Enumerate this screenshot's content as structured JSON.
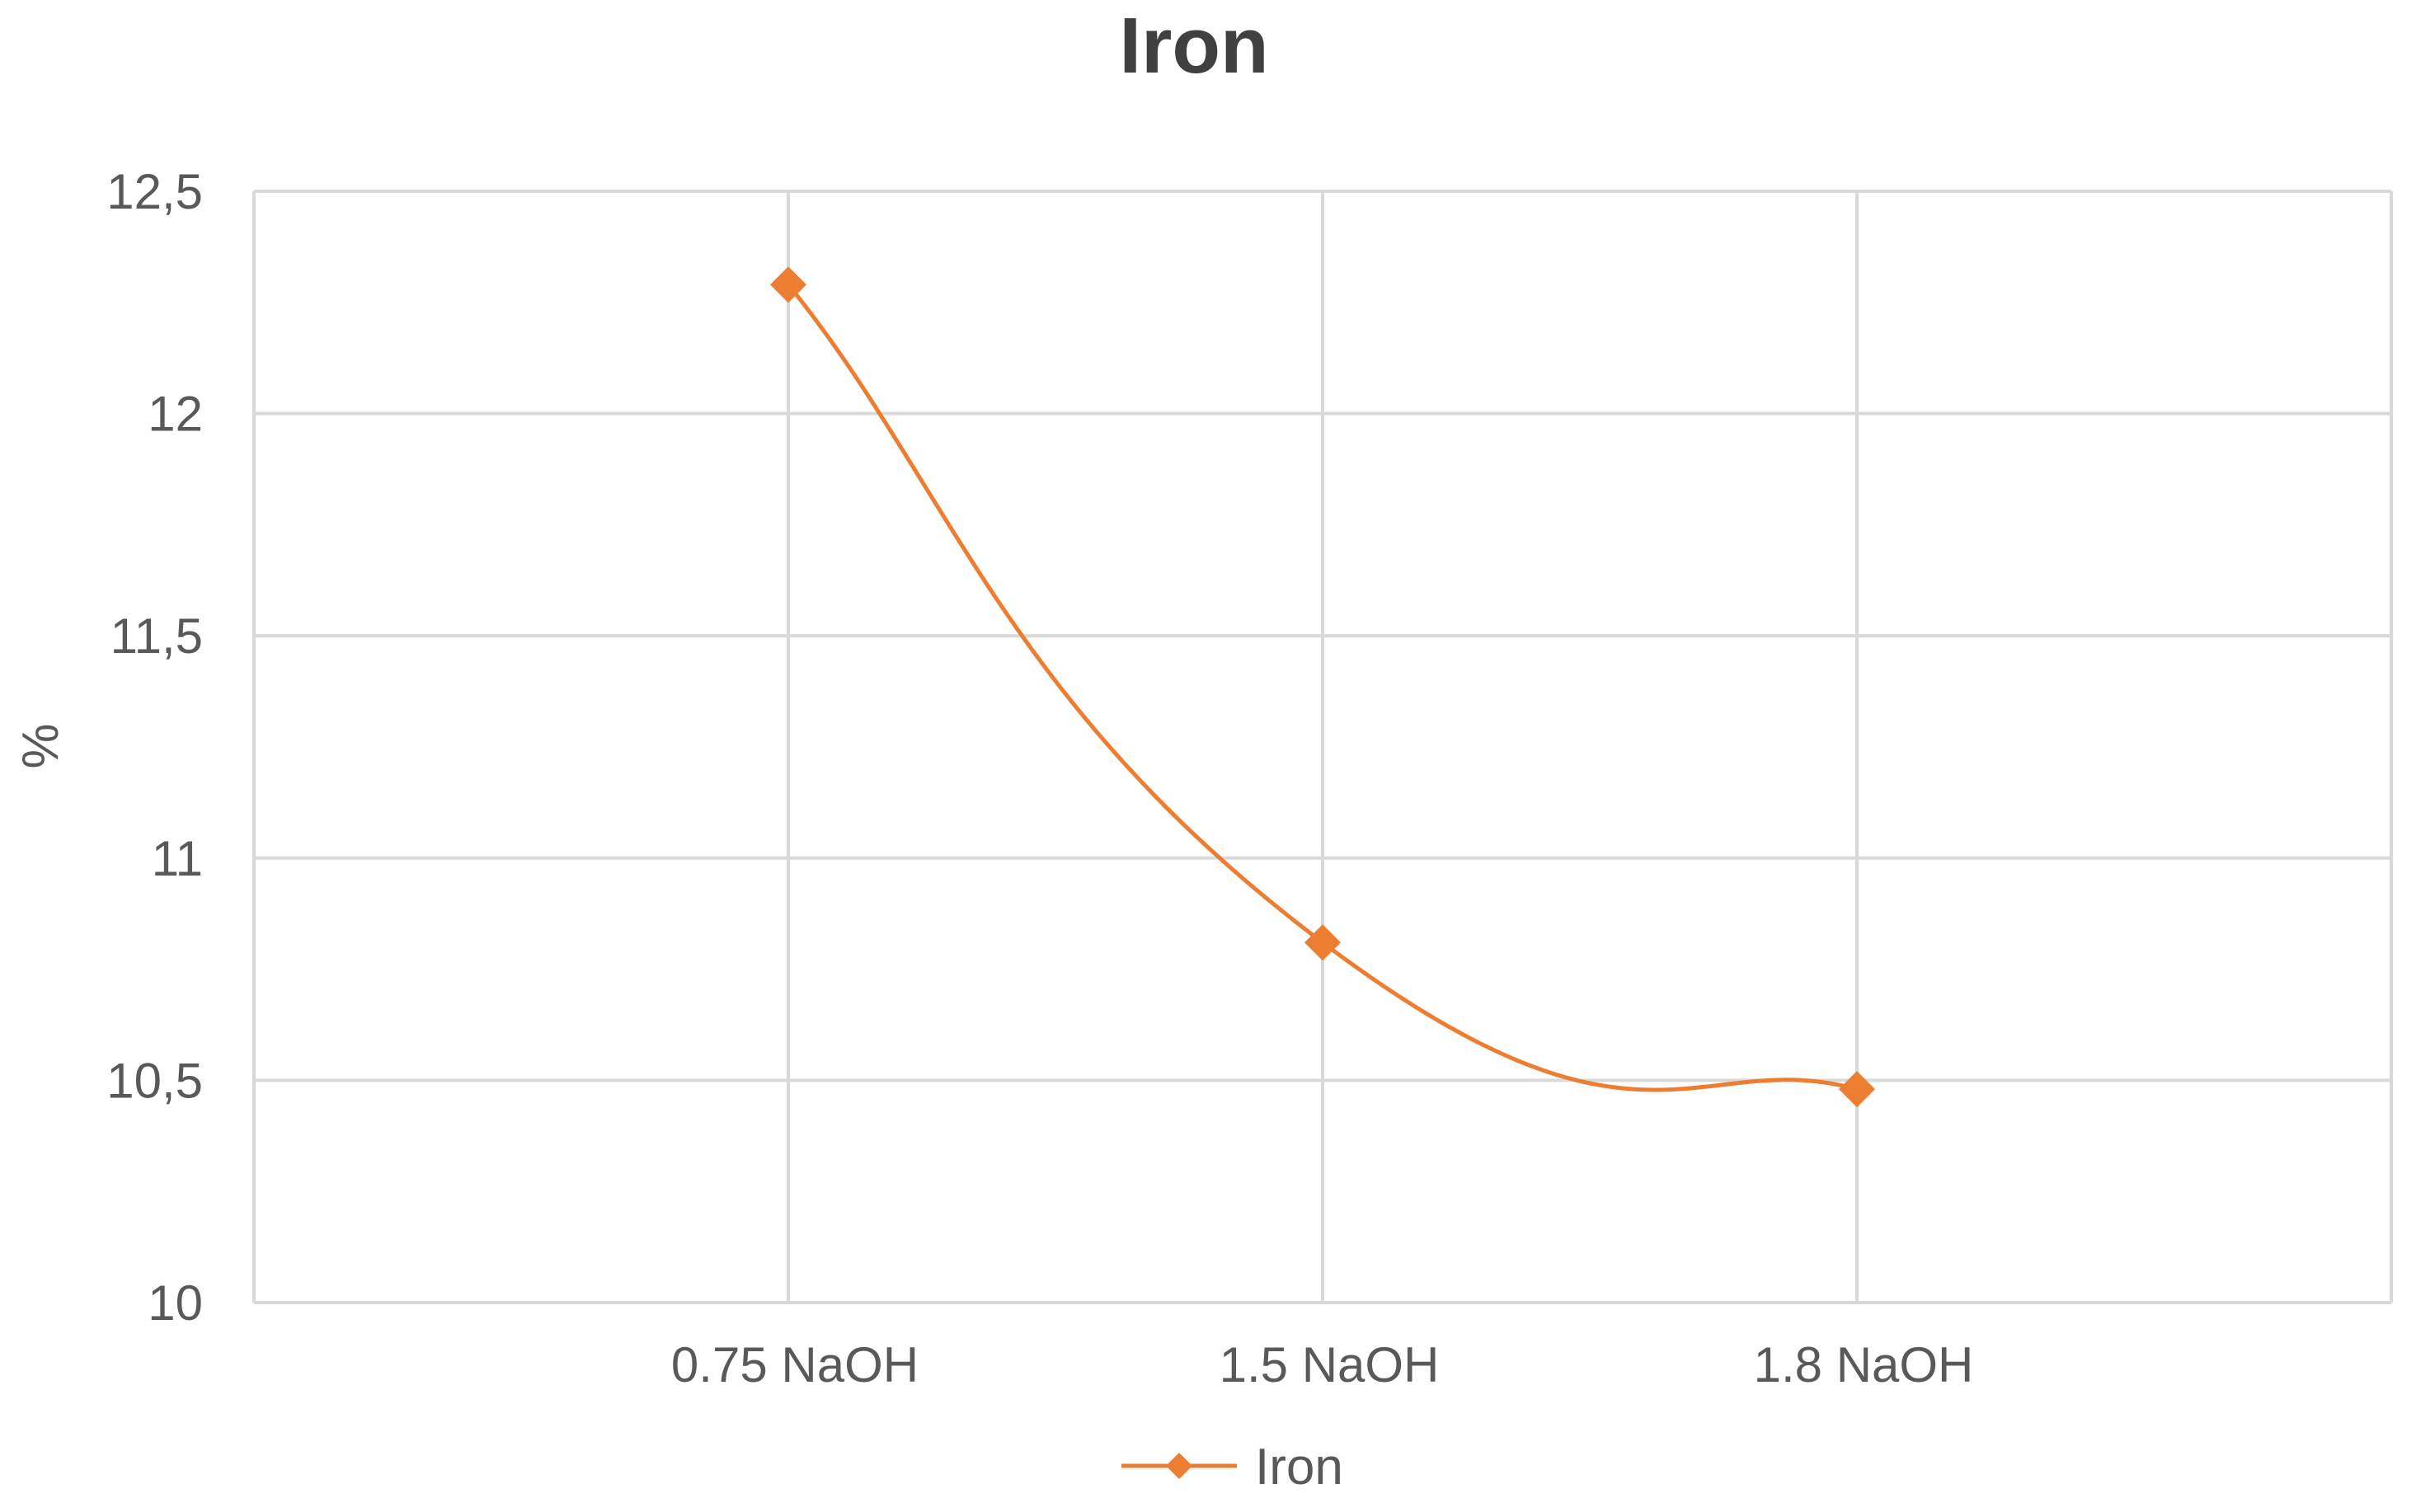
{
  "chart_data": {
    "type": "line",
    "title": "Iron",
    "xlabel": "",
    "ylabel": "%",
    "categories": [
      "0.75 NaOH",
      "1.5 NaOH",
      "1.8 NaOH"
    ],
    "ylim": [
      10,
      12.5
    ],
    "yticks": [
      10,
      10.5,
      11,
      11.5,
      12,
      12.5
    ],
    "ytick_labels": [
      "10",
      "10,5",
      "11",
      "11,5",
      "12",
      "12,5"
    ],
    "grid": true,
    "smooth": true,
    "legend_position": "bottom",
    "series": [
      {
        "name": "Iron",
        "values": [
          12.29,
          10.81,
          10.48
        ],
        "color": "#ED7D31",
        "marker": "diamond"
      }
    ]
  }
}
